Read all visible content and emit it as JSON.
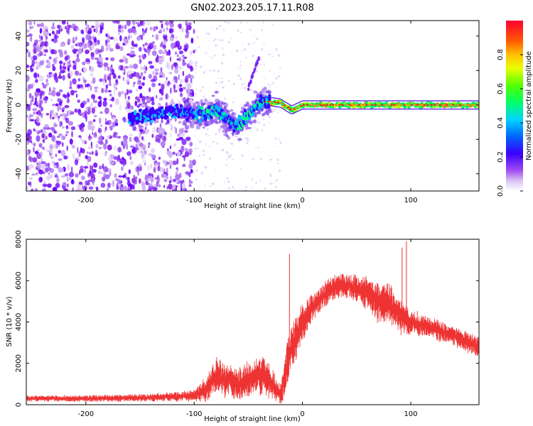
{
  "figure_title": "GN02.2023.205.17.11.R08",
  "chart_data": [
    {
      "type": "heatmap",
      "xlabel": "Height of straight line (km)",
      "ylabel": "Frequency (Hz)",
      "xlim": [
        -255,
        163
      ],
      "ylim": [
        -50,
        49
      ],
      "x_ticks": [
        -200,
        -100,
        0,
        100
      ],
      "x_tick_labels": [
        "-200",
        "-100",
        "0",
        "100"
      ],
      "y_ticks": [
        -40,
        -20,
        0,
        20,
        40
      ],
      "y_tick_labels": [
        "-40",
        "-20",
        "0",
        "20",
        "40"
      ],
      "colorbar": {
        "label": "Normalized spectral amplitude",
        "range": [
          0,
          1
        ],
        "ticks": [
          0.0,
          0.2,
          0.4,
          0.6,
          0.8
        ],
        "tick_labels": [
          "0.0",
          "0.2",
          "0.4",
          "0.6",
          "0.8"
        ]
      },
      "features": {
        "noise_region_x": [
          -255,
          -100
        ],
        "signal_track": {
          "x": [
            -160,
            -140,
            -120,
            -100,
            -90,
            -80,
            -70,
            -60,
            -50,
            -40,
            -35,
            -30,
            -20,
            -10,
            0,
            20,
            50,
            100,
            163
          ],
          "frequency": [
            -8,
            -6,
            -4,
            -5,
            -5,
            -3,
            -8,
            -12,
            -6,
            1,
            2,
            2,
            1,
            -3,
            0,
            0,
            0,
            0,
            0
          ]
        },
        "side_streak": {
          "x": [
            -50,
            -40
          ],
          "frequency": [
            10,
            28
          ]
        }
      },
      "grid": false
    },
    {
      "type": "line",
      "xlabel": "Height of straight line (km)",
      "ylabel": "SNR (10 * v/v)",
      "xlim": [
        -255,
        163
      ],
      "ylim": [
        0,
        8000
      ],
      "x_ticks": [
        -200,
        -100,
        0,
        100
      ],
      "x_tick_labels": [
        "-200",
        "-100",
        "0",
        "100"
      ],
      "y_ticks": [
        0,
        2000,
        4000,
        6000,
        8000
      ],
      "y_tick_labels": [
        "0",
        "2000",
        "4000",
        "6000",
        "8000"
      ],
      "color": "#ee3333",
      "envelope": {
        "x": [
          -255,
          -200,
          -150,
          -120,
          -100,
          -90,
          -80,
          -70,
          -60,
          -50,
          -40,
          -30,
          -20,
          -15,
          -10,
          0,
          10,
          20,
          30,
          40,
          50,
          60,
          70,
          80,
          90,
          100,
          120,
          140,
          163
        ],
        "mean": [
          300,
          300,
          330,
          380,
          450,
          700,
          1400,
          1200,
          1000,
          1200,
          1500,
          1100,
          500,
          1700,
          2800,
          3900,
          4800,
          5300,
          5700,
          5800,
          5600,
          5400,
          5000,
          4900,
          4300,
          4000,
          3700,
          3300,
          2800
        ],
        "spread": [
          120,
          130,
          150,
          180,
          220,
          500,
          700,
          700,
          600,
          700,
          800,
          700,
          400,
          900,
          1000,
          700,
          600,
          500,
          500,
          500,
          600,
          700,
          800,
          800,
          700,
          500,
          400,
          400,
          400
        ]
      },
      "spikes": [
        {
          "x": -12,
          "y": 7300
        },
        {
          "x": 92,
          "y": 7600
        },
        {
          "x": 96,
          "y": 7900
        }
      ],
      "grid": false
    }
  ]
}
